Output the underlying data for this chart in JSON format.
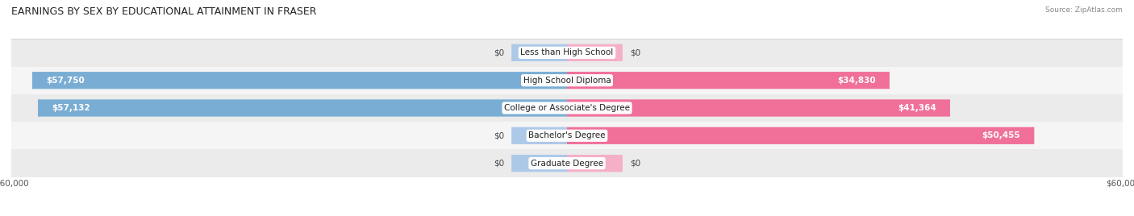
{
  "title": "EARNINGS BY SEX BY EDUCATIONAL ATTAINMENT IN FRASER",
  "source": "Source: ZipAtlas.com",
  "categories": [
    "Less than High School",
    "High School Diploma",
    "College or Associate's Degree",
    "Bachelor's Degree",
    "Graduate Degree"
  ],
  "male_values": [
    0,
    57750,
    57132,
    0,
    0
  ],
  "female_values": [
    0,
    34830,
    41364,
    50455,
    0
  ],
  "max_value": 60000,
  "male_color": "#7aadd4",
  "female_color": "#f0709a",
  "male_color_light": "#adc9e8",
  "female_color_light": "#f5b0c8",
  "row_bg_even": "#ebebeb",
  "row_bg_odd": "#f5f5f5",
  "title_fontsize": 9.0,
  "label_fontsize": 7.5,
  "source_fontsize": 6.5,
  "bar_height": 0.62,
  "stub_value": 6000,
  "figsize": [
    14.06,
    2.68
  ],
  "dpi": 100
}
